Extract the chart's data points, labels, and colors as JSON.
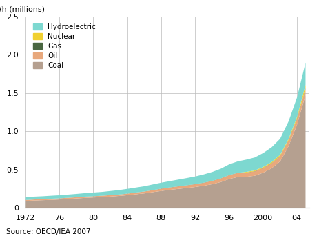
{
  "title": "",
  "ylabel": "GWh (millions)",
  "source": "Source: OECD/IEA 2007",
  "years": [
    1972,
    1973,
    1974,
    1975,
    1976,
    1977,
    1978,
    1979,
    1980,
    1981,
    1982,
    1983,
    1984,
    1985,
    1986,
    1987,
    1988,
    1989,
    1990,
    1991,
    1992,
    1993,
    1994,
    1995,
    1996,
    1997,
    1998,
    1999,
    2000,
    2001,
    2002,
    2003,
    2004,
    2005
  ],
  "coal": [
    0.092,
    0.098,
    0.102,
    0.106,
    0.112,
    0.118,
    0.125,
    0.132,
    0.138,
    0.143,
    0.15,
    0.158,
    0.168,
    0.18,
    0.192,
    0.208,
    0.224,
    0.238,
    0.25,
    0.262,
    0.275,
    0.292,
    0.312,
    0.34,
    0.38,
    0.405,
    0.408,
    0.422,
    0.462,
    0.52,
    0.61,
    0.81,
    1.09,
    1.48
  ],
  "oil": [
    0.012,
    0.013,
    0.013,
    0.014,
    0.014,
    0.015,
    0.015,
    0.016,
    0.016,
    0.017,
    0.018,
    0.018,
    0.02,
    0.022,
    0.024,
    0.026,
    0.028,
    0.03,
    0.032,
    0.034,
    0.036,
    0.038,
    0.042,
    0.046,
    0.05,
    0.053,
    0.055,
    0.056,
    0.06,
    0.064,
    0.068,
    0.072,
    0.076,
    0.08
  ],
  "gas": [
    0.001,
    0.001,
    0.001,
    0.001,
    0.001,
    0.001,
    0.001,
    0.001,
    0.001,
    0.001,
    0.001,
    0.001,
    0.001,
    0.001,
    0.001,
    0.001,
    0.002,
    0.002,
    0.002,
    0.002,
    0.002,
    0.002,
    0.002,
    0.002,
    0.002,
    0.002,
    0.002,
    0.003,
    0.003,
    0.003,
    0.003,
    0.004,
    0.005,
    0.006
  ],
  "nuclear": [
    0.0,
    0.0,
    0.0,
    0.0,
    0.0,
    0.0,
    0.0,
    0.0,
    0.0,
    0.0,
    0.0,
    0.0,
    0.0,
    0.0,
    0.0,
    0.0,
    0.0,
    0.0,
    0.0,
    0.0,
    0.0,
    0.0,
    0.0,
    0.0,
    0.0,
    0.0,
    0.008,
    0.01,
    0.012,
    0.013,
    0.015,
    0.018,
    0.022,
    0.045
  ],
  "hydro": [
    0.035,
    0.037,
    0.038,
    0.04,
    0.04,
    0.042,
    0.044,
    0.046,
    0.048,
    0.05,
    0.054,
    0.058,
    0.062,
    0.065,
    0.068,
    0.074,
    0.078,
    0.082,
    0.088,
    0.094,
    0.1,
    0.108,
    0.116,
    0.126,
    0.14,
    0.15,
    0.16,
    0.17,
    0.182,
    0.195,
    0.21,
    0.23,
    0.255,
    0.29
  ],
  "colors": {
    "coal": "#b5a090",
    "oil": "#e8a87c",
    "gas": "#4a6741",
    "nuclear": "#f0d030",
    "hydro": "#7dd8d0"
  },
  "ylim": [
    0,
    2.5
  ],
  "xlim": [
    1972,
    2005.5
  ],
  "xticks": [
    1972,
    1976,
    1980,
    1984,
    1988,
    1992,
    1996,
    2000,
    2004
  ],
  "xticklabels": [
    "1972",
    "76",
    "80",
    "84",
    "88",
    "92",
    "96",
    "2000",
    "04"
  ],
  "yticks": [
    0,
    0.5,
    1.0,
    1.5,
    2.0,
    2.5
  ],
  "legend_order": [
    "hydro",
    "nuclear",
    "gas",
    "oil",
    "coal"
  ],
  "legend_labels": [
    "Hydroelectric",
    "Nuclear",
    "Gas",
    "Oil",
    "Coal"
  ]
}
